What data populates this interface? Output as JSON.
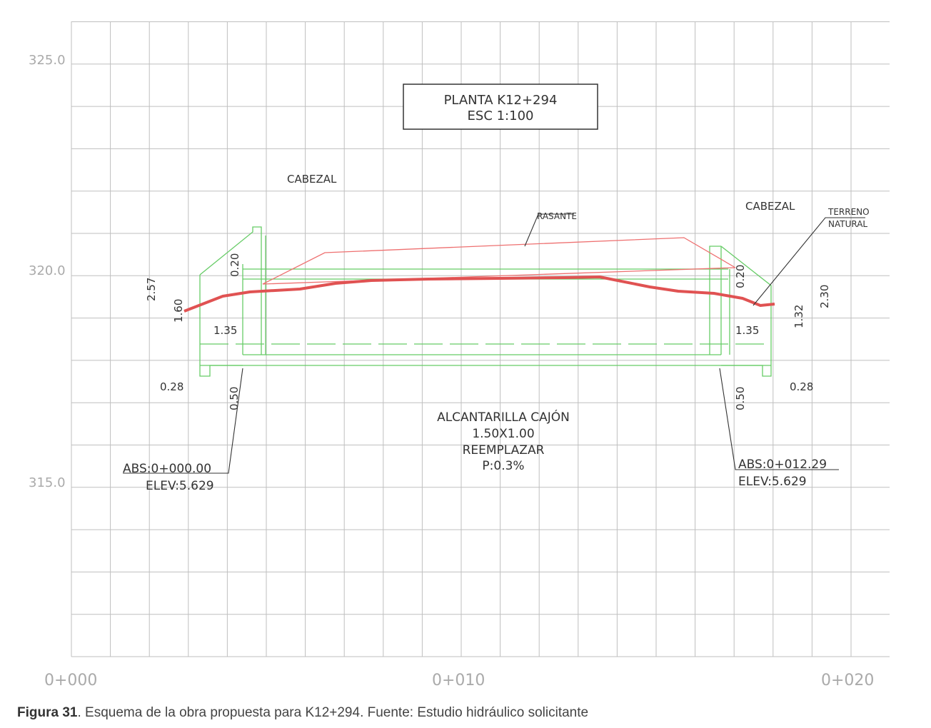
{
  "y_axis_labels": [
    "325.0",
    "320.0",
    "315.0"
  ],
  "x_axis_labels": [
    "0+000",
    "0+010",
    "0+020"
  ],
  "title_box": {
    "line1": "PLANTA  K12+294",
    "line2": "ESC  1:100"
  },
  "labels": {
    "cabezal_left": "CABEZAL",
    "cabezal_right": "CABEZAL",
    "rasante": "RASANTE",
    "terreno_line1": "TERRENO",
    "terreno_line2": "NATURAL"
  },
  "dimensions": {
    "left_257": "2.57",
    "left_160": "1.60",
    "left_020": "0.20",
    "left_135": "1.35",
    "left_028": "0.28",
    "left_050": "0.50",
    "right_020": "0.20",
    "right_135": "1.35",
    "right_132": "1.32",
    "right_230": "2.30",
    "right_028": "0.28",
    "right_050": "0.50"
  },
  "culvert": {
    "line1": "ALCANTARILLA  CAJÓN",
    "line2": "1.50X1.00",
    "line3": "REEMPLAZAR",
    "line4": "P:0.3%"
  },
  "start_point": {
    "abs": "ABS:0+000.00",
    "elev": "ELEV:5.629"
  },
  "end_point": {
    "abs": "ABS:0+012.29",
    "elev": "ELEV:5.629"
  },
  "caption": {
    "label": "Figura 31",
    "text": ". Esquema de la obra propuesta para K12+294. Fuente: Estudio hidráulico solicitante"
  },
  "colors": {
    "grid": "#bfbfbf",
    "structure": "#66cc66",
    "terrain": "#e05252",
    "rasante": "#ee7070",
    "text": "#333333"
  }
}
